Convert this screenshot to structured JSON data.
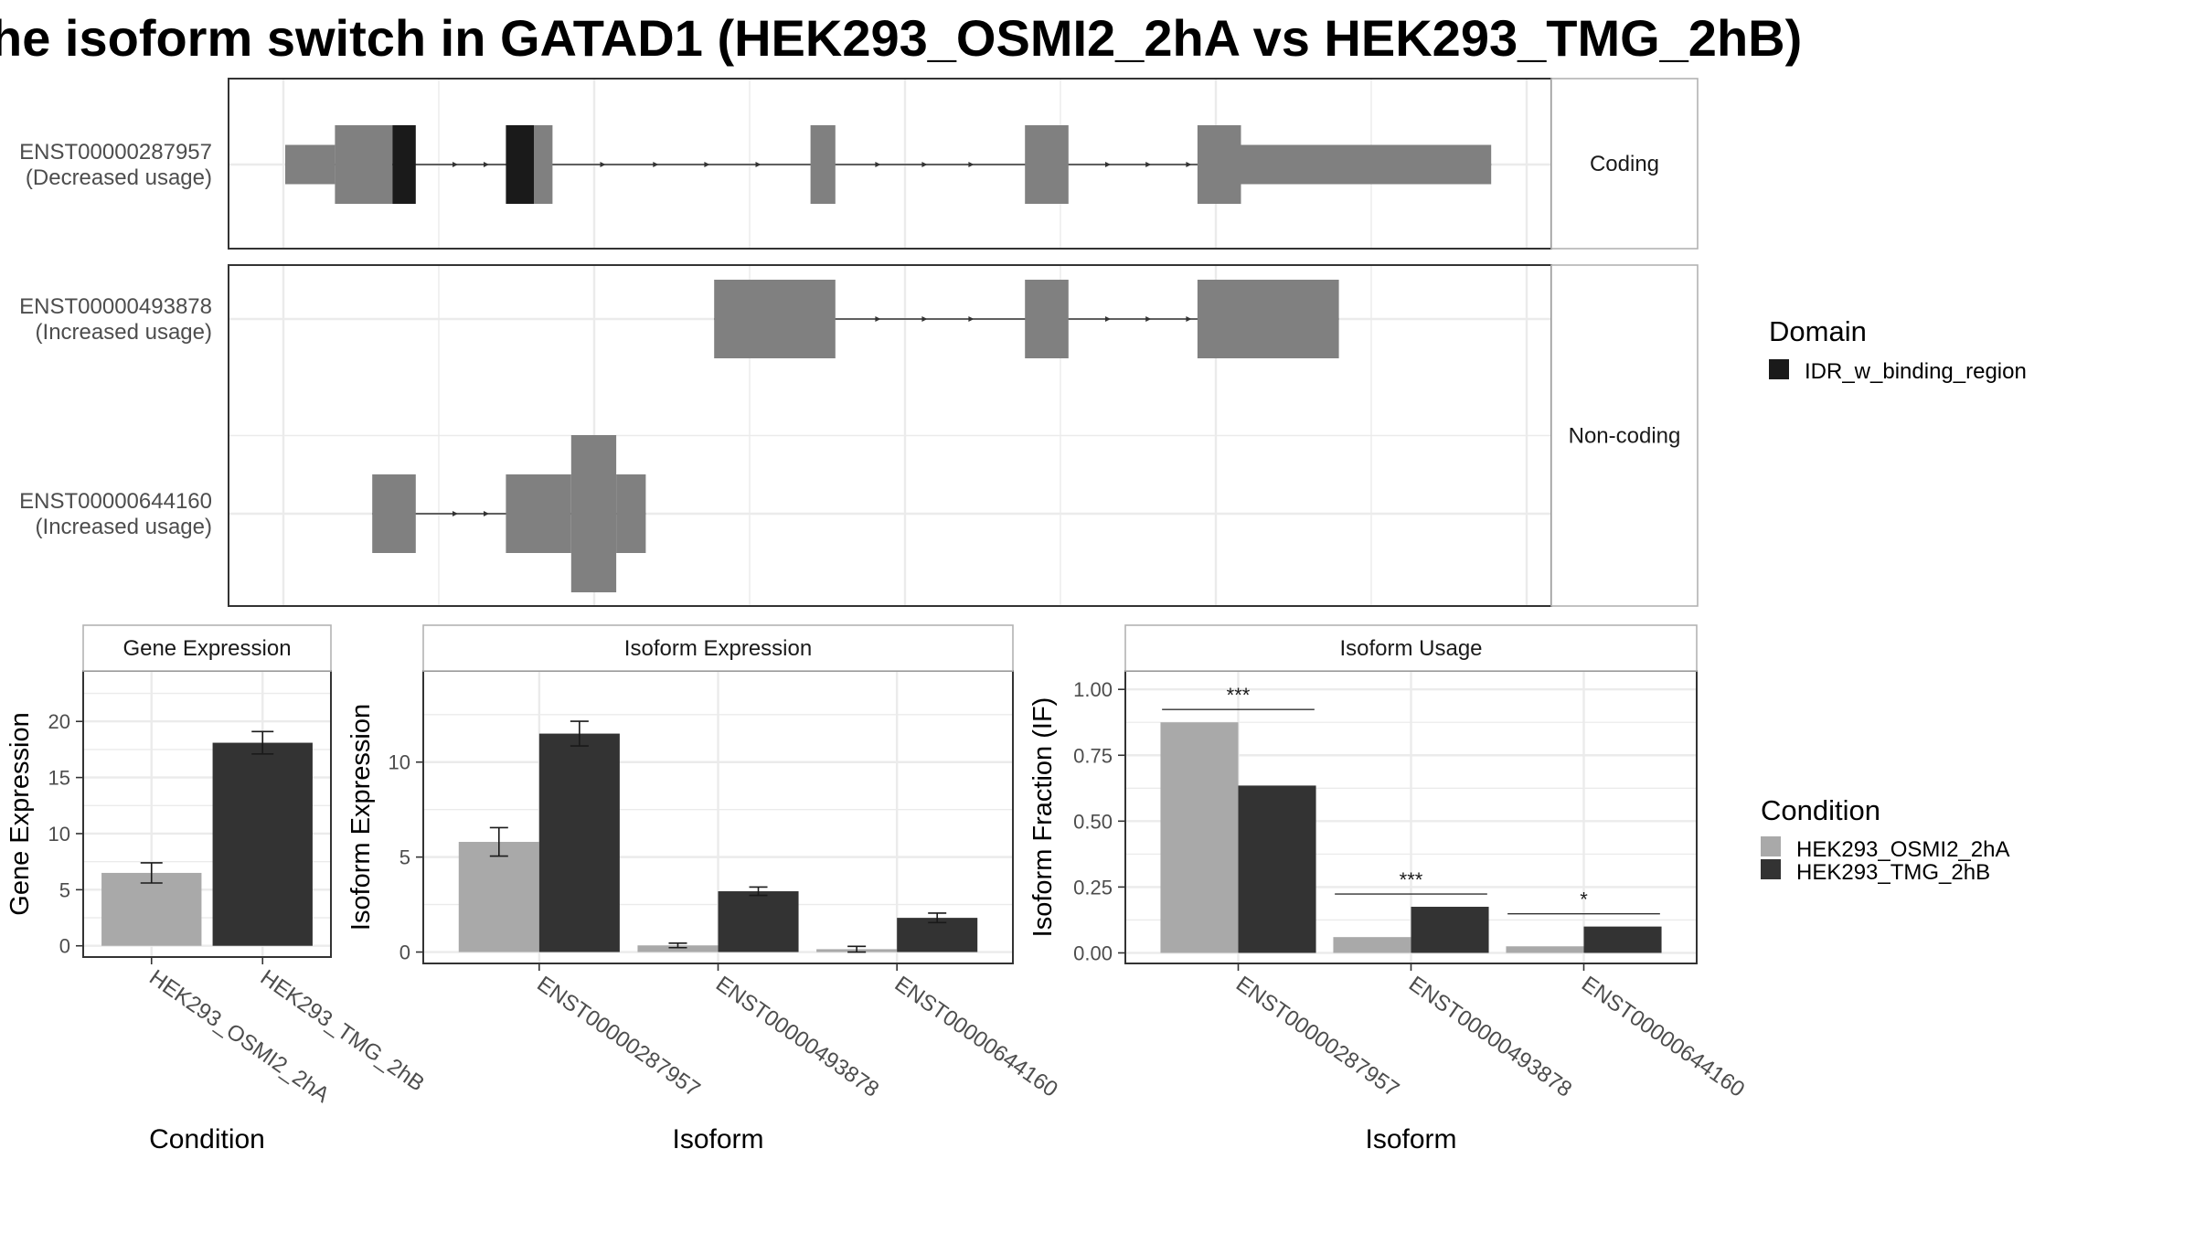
{
  "title": "he isoform switch in GATAD1 (HEK293_OSMI2_2hA vs HEK293_TMG_2hB)",
  "colors": {
    "exon": "#808080",
    "domain": "#1a1a1a",
    "condition_a": "#a9a9a9",
    "condition_b": "#333333",
    "grid": "#ebebeb",
    "panel_border": "#333333",
    "strip_border": "#b3b3b3"
  },
  "chart_data": [
    {
      "type": "transcript_structure",
      "facets": [
        "Coding",
        "Non-coding"
      ],
      "transcripts": [
        {
          "id": "ENST00000287957",
          "label": "(Decreased usage)",
          "facet": "Coding",
          "exons": [
            {
              "start": 0.0,
              "end": 3.2,
              "kind": "utr"
            },
            {
              "start": 3.2,
              "end": 6.9,
              "kind": "cds"
            },
            {
              "start": 6.9,
              "end": 8.4,
              "kind": "domain"
            },
            {
              "start": 14.2,
              "end": 16.0,
              "kind": "domain"
            },
            {
              "start": 16.0,
              "end": 17.2,
              "kind": "cds"
            },
            {
              "start": 33.8,
              "end": 35.4,
              "kind": "cds"
            },
            {
              "start": 47.6,
              "end": 50.4,
              "kind": "cds"
            },
            {
              "start": 58.7,
              "end": 61.5,
              "kind": "cds"
            },
            {
              "start": 61.5,
              "end": 77.6,
              "kind": "utr"
            }
          ],
          "arrows": [
            11.0,
            13.0,
            20.5,
            23.9,
            27.2,
            30.5,
            38.2,
            41.2,
            44.2,
            53.0,
            55.6,
            58.2
          ]
        },
        {
          "id": "ENST00000493878",
          "label": "(Increased usage)",
          "facet": "Non-coding",
          "exons": [
            {
              "start": 27.6,
              "end": 35.4,
              "kind": "nc"
            },
            {
              "start": 47.6,
              "end": 50.4,
              "kind": "nc"
            },
            {
              "start": 58.7,
              "end": 67.8,
              "kind": "nc"
            }
          ],
          "arrows": [
            38.2,
            41.2,
            44.2,
            53.0,
            55.6,
            58.2
          ]
        },
        {
          "id": "ENST00000644160",
          "label": "(Increased usage)",
          "facet": "Non-coding",
          "exons": [
            {
              "start": 5.6,
              "end": 8.4,
              "kind": "nc"
            },
            {
              "start": 14.2,
              "end": 18.4,
              "kind": "nc"
            },
            {
              "start": 18.4,
              "end": 21.3,
              "kind": "nc_tall"
            },
            {
              "start": 21.3,
              "end": 23.2,
              "kind": "nc"
            }
          ],
          "arrows": [
            11.0,
            13.0
          ]
        }
      ],
      "legend": {
        "title": "Domain",
        "entries": [
          "IDR_w_binding_region"
        ]
      }
    },
    {
      "type": "bar",
      "facet": "Gene Expression",
      "xlabel": "Condition",
      "ylabel": "Gene Expression",
      "categories": [
        "HEK293_OSMI2_2hA",
        "HEK293_TMG_2hB"
      ],
      "values": [
        6.5,
        18.1
      ],
      "errors": [
        0.9,
        1.0
      ],
      "ylim": [
        -1,
        24.5
      ],
      "yticks": [
        0,
        5,
        10,
        15,
        20
      ]
    },
    {
      "type": "bar",
      "facet": "Isoform Expression",
      "xlabel": "Isoform",
      "ylabel": "Isoform Expression",
      "categories": [
        "ENST00000287957",
        "ENST00000493878",
        "ENST00000644160"
      ],
      "series": [
        {
          "name": "HEK293_OSMI2_2hA",
          "values": [
            5.8,
            0.35,
            0.15
          ],
          "errors": [
            0.75,
            0.12,
            0.15
          ]
        },
        {
          "name": "HEK293_TMG_2hB",
          "values": [
            11.5,
            3.2,
            1.8
          ],
          "errors": [
            0.65,
            0.22,
            0.25
          ]
        }
      ],
      "ylim": [
        -0.6,
        14.8
      ],
      "yticks": [
        0,
        5,
        10
      ]
    },
    {
      "type": "bar",
      "facet": "Isoform Usage",
      "xlabel": "Isoform",
      "ylabel": "Isoform Fraction (IF)",
      "categories": [
        "ENST00000287957",
        "ENST00000493878",
        "ENST00000644160"
      ],
      "series": [
        {
          "name": "HEK293_OSMI2_2hA",
          "values": [
            0.875,
            0.06,
            0.025
          ]
        },
        {
          "name": "HEK293_TMG_2hB",
          "values": [
            0.635,
            0.175,
            0.1
          ]
        }
      ],
      "significance": [
        "***",
        "***",
        "*"
      ],
      "ylim": [
        -0.04,
        1.07
      ],
      "yticks": [
        "0.00",
        "0.25",
        "0.50",
        "0.75",
        "1.00"
      ],
      "legend": {
        "title": "Condition",
        "entries": [
          "HEK293_OSMI2_2hA",
          "HEK293_TMG_2hB"
        ]
      }
    }
  ]
}
